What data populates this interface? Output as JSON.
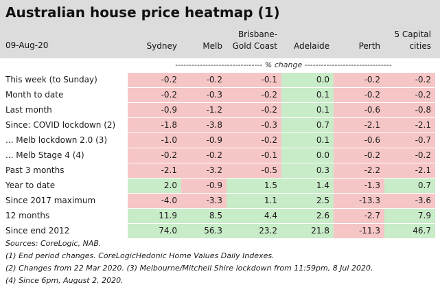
{
  "title": "Australian house price heatmap (1)",
  "date": "09-Aug-20",
  "unit_note": "% change",
  "colors": {
    "positive": "#c8ebc8",
    "negative": "#f6c6c6",
    "header_bg": "#dcdcdc"
  },
  "chart_data": {
    "type": "heatmap",
    "title": "Australian house price heatmap (1)",
    "columns": [
      [
        "Sydney"
      ],
      [
        "Melb"
      ],
      [
        "Brisbane-",
        "Gold Coast"
      ],
      [
        "Adelaide"
      ],
      [
        "Perth"
      ],
      [
        "5 Capital",
        "cities"
      ]
    ],
    "rows": [
      {
        "label": "This week (to Sunday)",
        "values": [
          "-0.2",
          "-0.2",
          "-0.1",
          "0.0",
          "-0.2",
          "-0.2"
        ]
      },
      {
        "label": "Month to date",
        "values": [
          "-0.2",
          "-0.3",
          "-0.2",
          "0.1",
          "-0.2",
          "-0.2"
        ]
      },
      {
        "label": "Last month",
        "values": [
          "-0.9",
          "-1.2",
          "-0.2",
          "0.1",
          "-0.6",
          "-0.8"
        ]
      },
      {
        "label": "Since: COVID lockdown (2)",
        "values": [
          "-1.8",
          "-3.8",
          "-0.3",
          "0.7",
          "-2.1",
          "-2.1"
        ]
      },
      {
        "label": " ... Melb lockdown 2.0 (3)",
        "values": [
          "-1.0",
          "-0.9",
          "-0.2",
          "0.1",
          "-0.6",
          "-0.7"
        ]
      },
      {
        "label": " ... Melb Stage 4 (4)",
        "values": [
          "-0.2",
          "-0.2",
          "-0.1",
          "0.0",
          "-0.2",
          "-0.2"
        ]
      },
      {
        "label": "Past 3 months",
        "values": [
          "-2.1",
          "-3.2",
          "-0.5",
          "0.3",
          "-2.2",
          "-2.1"
        ]
      },
      {
        "label": "Year to date",
        "values": [
          "2.0",
          "-0.9",
          "1.5",
          "1.4",
          "-1.3",
          "0.7"
        ]
      },
      {
        "label": "Since 2017 maximum",
        "values": [
          "-4.0",
          "-3.3",
          "1.1",
          "2.5",
          "-13.3",
          "-3.6"
        ]
      },
      {
        "label": "12 months",
        "values": [
          "11.9",
          "8.5",
          "4.4",
          "2.6",
          "-2.7",
          "7.9"
        ]
      },
      {
        "label": "Since end 2012",
        "values": [
          "74.0",
          "56.3",
          "23.2",
          "21.8",
          "-11.3",
          "46.7"
        ]
      }
    ]
  },
  "notes": [
    "Sources: CoreLogic, NAB.",
    "(1) End period changes. CoreLogicHedonic Home Values Daily Indexes.",
    "(2) Changes from 22 Mar 2020. (3) Melbourne/Mitchell Shire lockdown from 11:59pm, 8 Jul 2020.",
    "(4) Since 6pm, August 2, 2020."
  ]
}
